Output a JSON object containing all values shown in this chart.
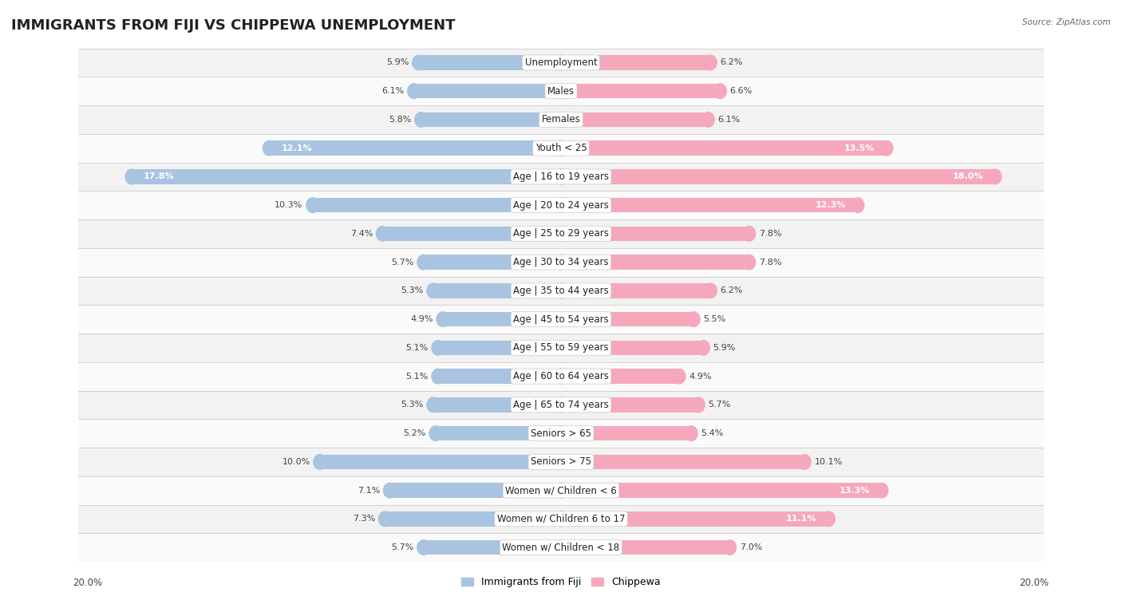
{
  "title": "IMMIGRANTS FROM FIJI VS CHIPPEWA UNEMPLOYMENT",
  "source": "Source: ZipAtlas.com",
  "categories": [
    "Unemployment",
    "Males",
    "Females",
    "Youth < 25",
    "Age | 16 to 19 years",
    "Age | 20 to 24 years",
    "Age | 25 to 29 years",
    "Age | 30 to 34 years",
    "Age | 35 to 44 years",
    "Age | 45 to 54 years",
    "Age | 55 to 59 years",
    "Age | 60 to 64 years",
    "Age | 65 to 74 years",
    "Seniors > 65",
    "Seniors > 75",
    "Women w/ Children < 6",
    "Women w/ Children 6 to 17",
    "Women w/ Children < 18"
  ],
  "fiji_values": [
    5.9,
    6.1,
    5.8,
    12.1,
    17.8,
    10.3,
    7.4,
    5.7,
    5.3,
    4.9,
    5.1,
    5.1,
    5.3,
    5.2,
    10.0,
    7.1,
    7.3,
    5.7
  ],
  "chippewa_values": [
    6.2,
    6.6,
    6.1,
    13.5,
    18.0,
    12.3,
    7.8,
    7.8,
    6.2,
    5.5,
    5.9,
    4.9,
    5.7,
    5.4,
    10.1,
    13.3,
    11.1,
    7.0
  ],
  "fiji_color": "#a8c4e0",
  "chippewa_color": "#f5a8bc",
  "fiji_label": "Immigrants from Fiji",
  "chippewa_label": "Chippewa",
  "axis_limit": 20.0,
  "bar_height": 0.52,
  "row_colors": [
    "#f2f2f2",
    "#fafafa"
  ],
  "title_fontsize": 13,
  "label_fontsize": 8.5,
  "value_fontsize": 8.0,
  "inside_label_threshold": 10.5
}
